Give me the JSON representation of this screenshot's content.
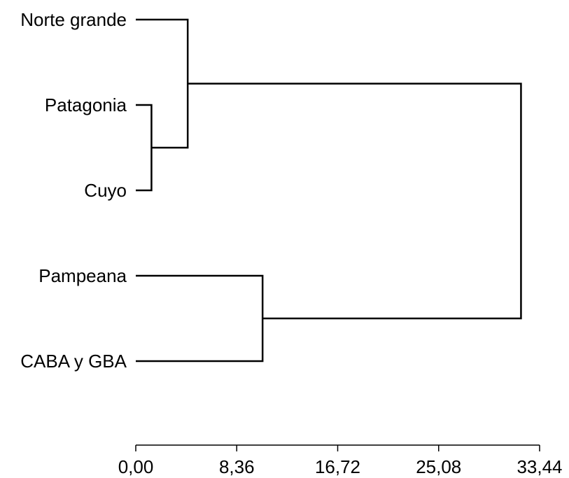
{
  "chart_data": {
    "type": "dendrogram",
    "orientation": "horizontal",
    "leaves": [
      "Norte grande",
      "Patagonia",
      "Cuyo",
      "Pampeana",
      "CABA y GBA"
    ],
    "merges": [
      {
        "id": "m1",
        "left": "Patagonia",
        "right": "Cuyo",
        "height": 1.3
      },
      {
        "id": "m2",
        "left": "Norte grande",
        "right": "m1",
        "height": 4.3
      },
      {
        "id": "m3",
        "left": "Pampeana",
        "right": "CABA y GBA",
        "height": 10.5
      },
      {
        "id": "m4",
        "left": "m2",
        "right": "m3",
        "height": 31.9
      }
    ],
    "x_ticks": [
      "0,00",
      "8,36",
      "16,72",
      "25,08",
      "33,44"
    ],
    "x_tick_values": [
      0,
      8.36,
      16.72,
      25.08,
      33.44
    ],
    "xlim": [
      0,
      33.44
    ],
    "grid": false
  }
}
